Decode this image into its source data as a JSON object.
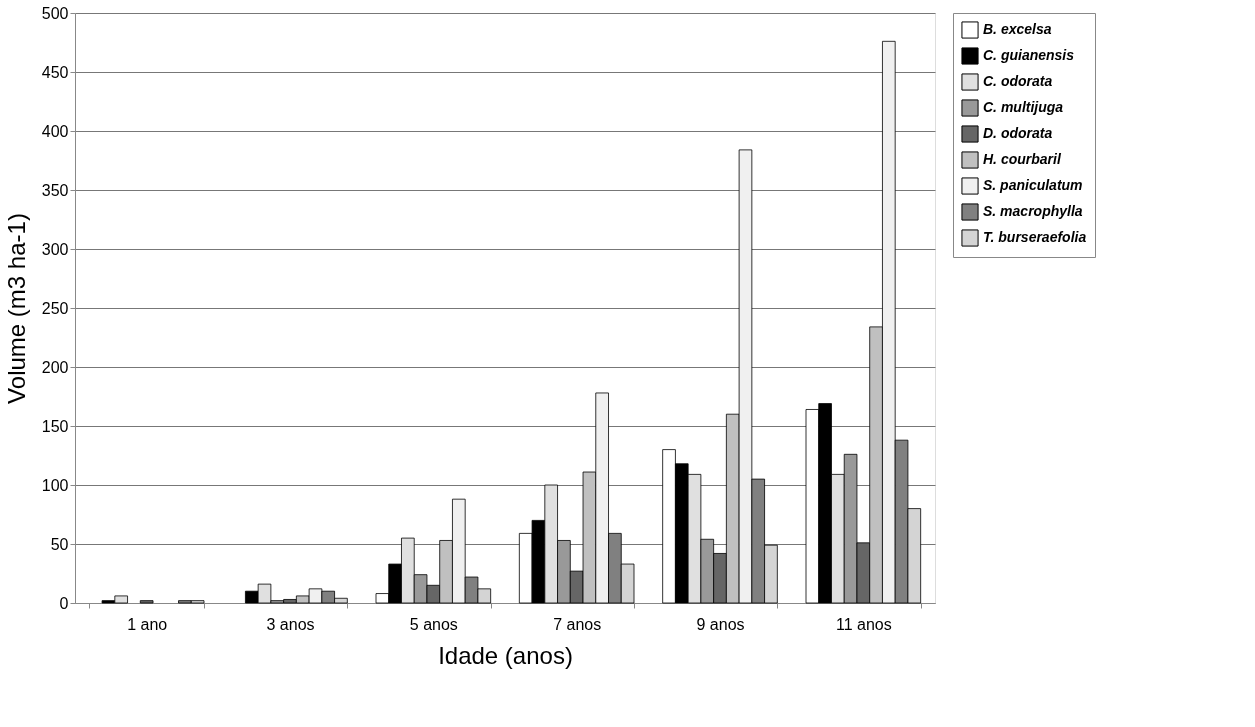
{
  "chart_data": {
    "type": "bar",
    "xlabel": "Idade (anos)",
    "ylabel": "Volume (m3 ha-1)",
    "categories": [
      "1 ano",
      "3 anos",
      "5 anos",
      "7 anos",
      "9 anos",
      "11 anos"
    ],
    "series": [
      {
        "name": "B. excelsa",
        "color": "#ffffff",
        "values": [
          null,
          null,
          8,
          59,
          130,
          164
        ]
      },
      {
        "name": "C. guianensis",
        "color": "#000000",
        "values": [
          2,
          10,
          33,
          70,
          118,
          169
        ]
      },
      {
        "name": "C. odorata",
        "color": "#e0e0e0",
        "values": [
          6,
          16,
          55,
          100,
          109,
          109
        ]
      },
      {
        "name": "C. multijuga",
        "color": "#999999",
        "values": [
          null,
          2,
          24,
          53,
          54,
          126
        ]
      },
      {
        "name": "D. odorata",
        "color": "#666666",
        "values": [
          2,
          3,
          15,
          27,
          42,
          51
        ]
      },
      {
        "name": "H. courbaril",
        "color": "#c0c0c0",
        "values": [
          null,
          6,
          53,
          111,
          160,
          234
        ]
      },
      {
        "name": "S. paniculatum",
        "color": "#f0f0f0",
        "values": [
          null,
          12,
          88,
          178,
          384,
          476
        ]
      },
      {
        "name": "S. macrophylla",
        "color": "#808080",
        "values": [
          2,
          10,
          22,
          59,
          105,
          138
        ]
      },
      {
        "name": "T. burseraefolia",
        "color": "#d4d4d4",
        "values": [
          2,
          4,
          12,
          33,
          49,
          80
        ]
      }
    ],
    "ylim": [
      0,
      500
    ],
    "yticks": [
      0,
      50,
      100,
      150,
      200,
      250,
      300,
      350,
      400,
      450,
      500
    ],
    "grid": "y",
    "legend": "right"
  }
}
